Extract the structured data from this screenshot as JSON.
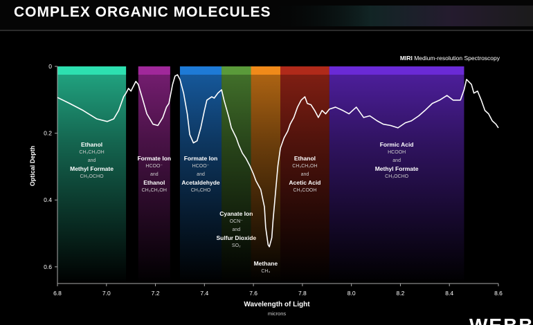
{
  "chart_data": {
    "type": "line",
    "title": "COMPLEX ORGANIC MOLECULES",
    "instrument": "MIRI",
    "subtitle": "Medium-resolution Spectroscopy",
    "x_label": "Wavelength of Light",
    "x_unit": "microns",
    "y_label": "Optical Depth",
    "logo": "WEBB",
    "xlim": [
      6.8,
      8.6
    ],
    "ylim": [
      0,
      0.65
    ],
    "y_inverted": true,
    "grid": false,
    "xticks": [
      6.8,
      {
        "value": 7,
        "label": "7.0"
      },
      7.2,
      7.4,
      7.6,
      7.8,
      {
        "value": 8,
        "label": "8.0"
      },
      8.2,
      8.4,
      8.6
    ],
    "yticks": [
      0,
      0.2,
      0.4,
      0.6
    ],
    "bands": [
      {
        "start": 6.8,
        "end": 7.08,
        "color": "#2de0b0",
        "labels": [
          "Ethanol",
          "CH₃CH₂OH",
          "and",
          "Methyl Formate",
          "CH₃OCHO"
        ]
      },
      {
        "start": 7.13,
        "end": 7.26,
        "color": "#a0289a",
        "labels": [
          "Formate Ion",
          "HCOO⁻",
          "and",
          "Ethanol",
          "CH₃CH₂OH"
        ]
      },
      {
        "start": 7.3,
        "end": 7.47,
        "color": "#1e7ad6",
        "labels": [
          "Formate Ion",
          "HCOO⁻",
          "and",
          "Acetaldehyde",
          "CH₃CHO"
        ]
      },
      {
        "start": 7.47,
        "end": 7.59,
        "color": "#5a9a3a",
        "labels": [
          "Cyanate Ion",
          "OCN⁻",
          "and",
          "Sulfur Dioxide",
          "SO₂"
        ]
      },
      {
        "start": 7.59,
        "end": 7.71,
        "color": "#f08a1a",
        "labels": [
          "Methane",
          "CH₄"
        ]
      },
      {
        "start": 7.71,
        "end": 7.91,
        "color": "#b02a1a",
        "labels": [
          "Ethanol",
          "CH₃CH₂OH",
          "and",
          "Acetic Acid",
          "CH₃COOH"
        ]
      },
      {
        "start": 7.91,
        "end": 8.46,
        "color": "#6a2ad6",
        "labels": [
          "Formic Acid",
          "HCOOH",
          "and",
          "Methyl Formate",
          "CH₃OCHO"
        ]
      }
    ],
    "series": [
      {
        "name": "Spectrum",
        "color": "#ffffff",
        "x": [
          6.8,
          6.85,
          6.905,
          6.96,
          7.003,
          7.03,
          7.05,
          7.07,
          7.08,
          7.09,
          7.1,
          7.12,
          7.13,
          7.145,
          7.165,
          7.19,
          7.21,
          7.23,
          7.245,
          7.255,
          7.27,
          7.28,
          7.29,
          7.3,
          7.315,
          7.33,
          7.34,
          7.355,
          7.37,
          7.385,
          7.4,
          7.41,
          7.43,
          7.44,
          7.455,
          7.47,
          7.48,
          7.5,
          7.51,
          7.53,
          7.54,
          7.555,
          7.57,
          7.585,
          7.6,
          7.61,
          7.63,
          7.645,
          7.65,
          7.66,
          7.665,
          7.675,
          7.68,
          7.69,
          7.7,
          7.71,
          7.725,
          7.74,
          7.75,
          7.765,
          7.78,
          7.795,
          7.81,
          7.82,
          7.835,
          7.85,
          7.865,
          7.88,
          7.895,
          7.91,
          7.935,
          7.965,
          7.99,
          8.02,
          8.05,
          8.075,
          8.105,
          8.13,
          8.16,
          8.19,
          8.22,
          8.245,
          8.275,
          8.3,
          8.33,
          8.36,
          8.39,
          8.415,
          8.445,
          8.46,
          8.47,
          8.49,
          8.5,
          8.515,
          8.53,
          8.545,
          8.56,
          8.575,
          8.59,
          8.6
        ],
        "values": [
          0.093,
          0.111,
          0.132,
          0.157,
          0.165,
          0.157,
          0.132,
          0.091,
          0.08,
          0.066,
          0.074,
          0.045,
          0.054,
          0.091,
          0.142,
          0.173,
          0.177,
          0.153,
          0.122,
          0.111,
          0.054,
          0.029,
          0.025,
          0.039,
          0.08,
          0.142,
          0.204,
          0.229,
          0.223,
          0.184,
          0.132,
          0.101,
          0.091,
          0.095,
          0.08,
          0.07,
          0.101,
          0.153,
          0.184,
          0.214,
          0.235,
          0.26,
          0.276,
          0.297,
          0.322,
          0.342,
          0.369,
          0.421,
          0.482,
          0.534,
          0.54,
          0.513,
          0.462,
          0.379,
          0.297,
          0.245,
          0.214,
          0.194,
          0.173,
          0.153,
          0.122,
          0.101,
          0.091,
          0.111,
          0.115,
          0.132,
          0.153,
          0.132,
          0.142,
          0.128,
          0.122,
          0.132,
          0.142,
          0.122,
          0.153,
          0.148,
          0.163,
          0.173,
          0.177,
          0.184,
          0.169,
          0.163,
          0.148,
          0.132,
          0.111,
          0.101,
          0.087,
          0.101,
          0.101,
          0.07,
          0.039,
          0.054,
          0.08,
          0.074,
          0.101,
          0.132,
          0.142,
          0.163,
          0.173,
          0.184
        ]
      }
    ]
  }
}
